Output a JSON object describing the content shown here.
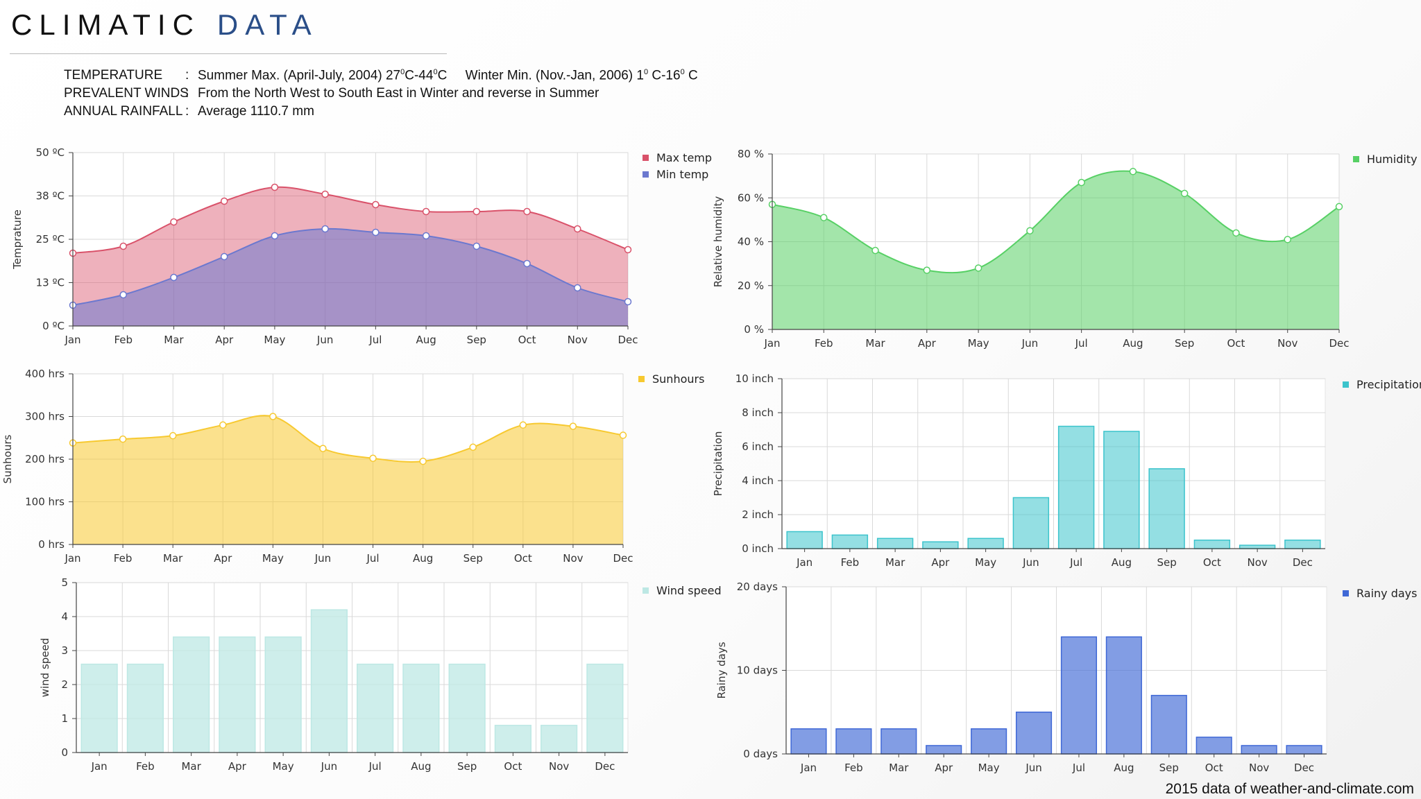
{
  "header": {
    "title_word1": "CLIMATIC",
    "title_word2": "DATA"
  },
  "info": {
    "temperature_label": "TEMPERATURE",
    "temperature_summer": "Summer Max. (April-July, 2004) 27",
    "temperature_summer_mid": "C-44",
    "temperature_winter": "C     Winter Min. (Nov.-Jan, 2006) 1",
    "temperature_winter_mid": " C-16",
    "temperature_end": " C",
    "deg": "0",
    "winds_label": "PREVALENT WINDS",
    "winds_value": "From the North West to South East in Winter and reverse in Summer",
    "rainfall_label": "ANNUAL RAINFALL",
    "rainfall_value": "Average 1110.7 mm",
    "colon": ":"
  },
  "source": "2015 data of weather-and-climate.com",
  "colors": {
    "max_temp": "#d9526a",
    "min_temp": "#6b78cf",
    "humidity": "#57d065",
    "sunhours": "#f7c930",
    "precipitation": "#3cc4cc",
    "wind_speed": "#bde8e4",
    "rainy_days": "#3f68d6"
  },
  "chart_data": [
    {
      "type": "area",
      "categories": [
        "Jan",
        "Feb",
        "Mar",
        "Apr",
        "May",
        "Jun",
        "Jul",
        "Aug",
        "Sep",
        "Oct",
        "Nov",
        "Dec"
      ],
      "series": [
        {
          "name": "Max temp",
          "values": [
            21,
            23,
            30,
            36,
            40,
            38,
            35,
            33,
            33,
            33,
            28,
            22
          ]
        },
        {
          "name": "Min temp",
          "values": [
            6,
            9,
            14,
            20,
            26,
            28,
            27,
            26,
            23,
            18,
            11,
            7
          ]
        }
      ],
      "ylabel": "Temprature",
      "y_ticks": [
        "0 ºC",
        "13 ºC",
        "25 ºC",
        "38 ºC",
        "50 ºC"
      ],
      "ylim": [
        0,
        50
      ],
      "grid": true,
      "legend": "top-right"
    },
    {
      "type": "area",
      "categories": [
        "Jan",
        "Feb",
        "Mar",
        "Apr",
        "May",
        "Jun",
        "Jul",
        "Aug",
        "Sep",
        "Oct",
        "Nov",
        "Dec"
      ],
      "series": [
        {
          "name": "Humidity",
          "values": [
            57,
            51,
            36,
            27,
            28,
            45,
            67,
            72,
            62,
            44,
            41,
            56
          ]
        }
      ],
      "ylabel": "Relative humidity",
      "y_ticks": [
        "0 %",
        "20 %",
        "40 %",
        "60 %",
        "80 %"
      ],
      "ylim": [
        0,
        80
      ],
      "grid": true,
      "legend": "top-right"
    },
    {
      "type": "area",
      "categories": [
        "Jan",
        "Feb",
        "Mar",
        "Apr",
        "May",
        "Jun",
        "Jul",
        "Aug",
        "Sep",
        "Oct",
        "Nov",
        "Dec"
      ],
      "series": [
        {
          "name": "Sunhours",
          "values": [
            238,
            247,
            255,
            280,
            300,
            225,
            202,
            195,
            228,
            280,
            277,
            256
          ]
        }
      ],
      "ylabel": "Sunhours",
      "y_ticks": [
        "0 hrs",
        "100 hrs",
        "200 hrs",
        "300 hrs",
        "400 hrs"
      ],
      "ylim": [
        0,
        400
      ],
      "grid": true,
      "legend": "top-right"
    },
    {
      "type": "bar",
      "categories": [
        "Jan",
        "Feb",
        "Mar",
        "Apr",
        "May",
        "Jun",
        "Jul",
        "Aug",
        "Sep",
        "Oct",
        "Nov",
        "Dec"
      ],
      "series": [
        {
          "name": "Precipitation",
          "values": [
            1.0,
            0.8,
            0.6,
            0.4,
            0.6,
            3.0,
            7.2,
            6.9,
            4.7,
            0.5,
            0.2,
            0.5
          ]
        }
      ],
      "ylabel": "Precipitation",
      "y_ticks": [
        "0 inch",
        "2 inch",
        "4 inch",
        "6 inch",
        "8 inch",
        "10 inch"
      ],
      "ylim": [
        0,
        10
      ],
      "grid": true,
      "legend": "top-right"
    },
    {
      "type": "bar",
      "categories": [
        "Jan",
        "Feb",
        "Mar",
        "Apr",
        "May",
        "Jun",
        "Jul",
        "Aug",
        "Sep",
        "Oct",
        "Nov",
        "Dec"
      ],
      "series": [
        {
          "name": "Wind speed",
          "values": [
            2.6,
            2.6,
            3.4,
            3.4,
            3.4,
            4.2,
            2.6,
            2.6,
            2.6,
            0.8,
            0.8,
            2.6
          ]
        }
      ],
      "ylabel": "wind speed",
      "y_ticks": [
        "0",
        "1",
        "2",
        "3",
        "4",
        "5"
      ],
      "ylim": [
        0,
        5
      ],
      "grid": true,
      "legend": "top-right"
    },
    {
      "type": "bar",
      "categories": [
        "Jan",
        "Feb",
        "Mar",
        "Apr",
        "May",
        "Jun",
        "Jul",
        "Aug",
        "Sep",
        "Oct",
        "Nov",
        "Dec"
      ],
      "series": [
        {
          "name": "Rainy days",
          "values": [
            3,
            3,
            3,
            1,
            3,
            5,
            14,
            14,
            7,
            2,
            1,
            1
          ]
        }
      ],
      "ylabel": "Rainy days",
      "y_ticks": [
        "0 days",
        "10 days",
        "20 days"
      ],
      "ylim": [
        0,
        20
      ],
      "grid": true,
      "legend": "top-right"
    }
  ]
}
